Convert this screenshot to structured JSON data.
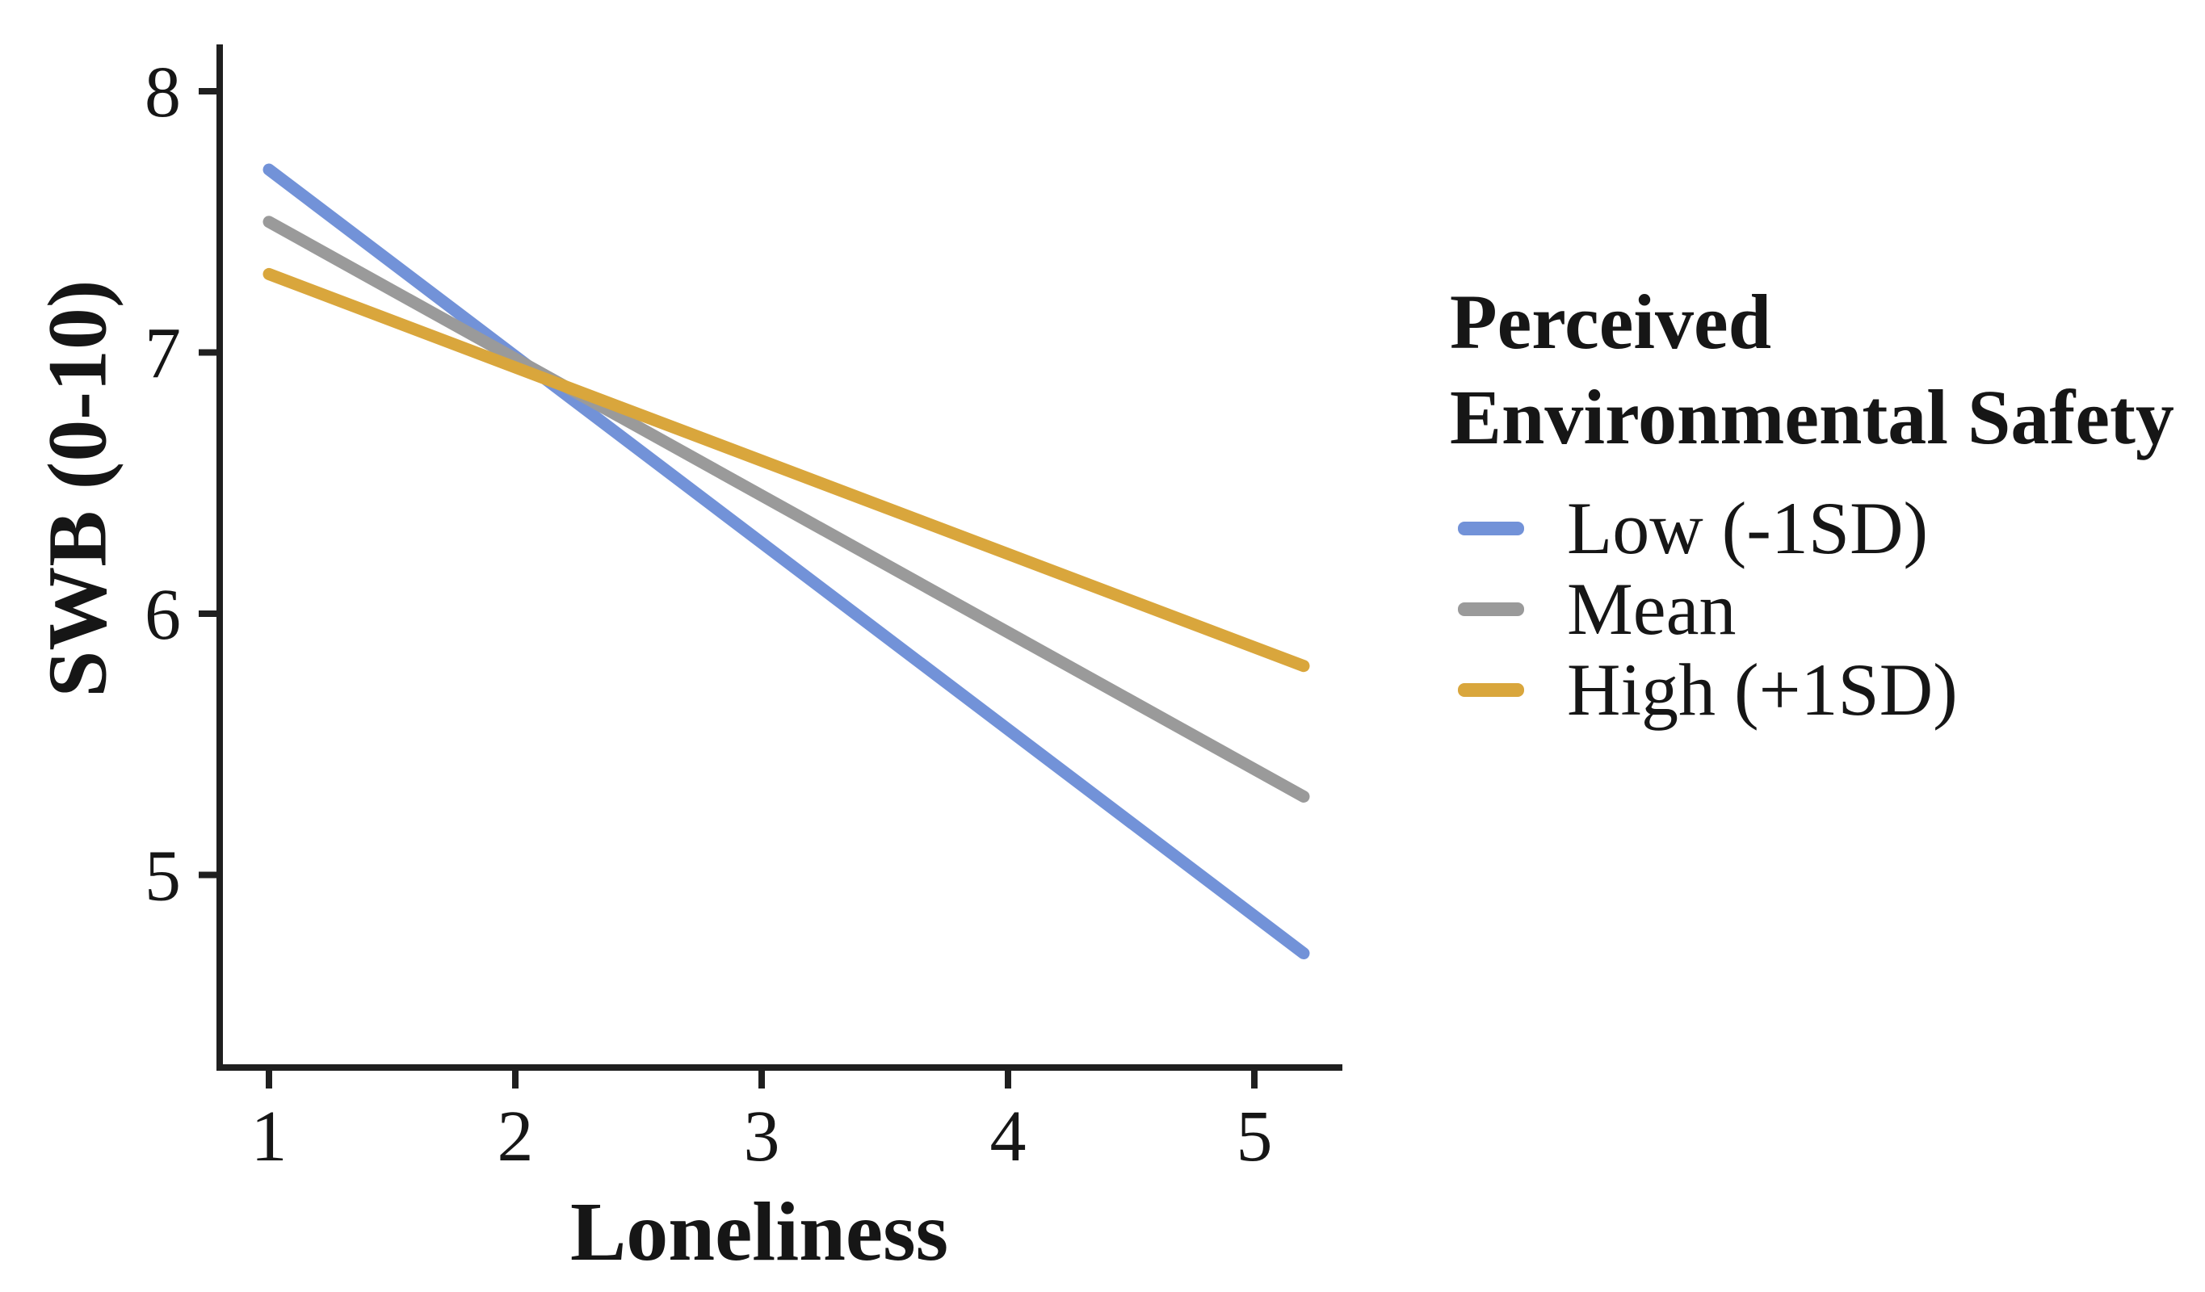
{
  "figure": {
    "background": "#ffffff",
    "text_color": "#161616",
    "axis_color": "#1f1f1f"
  },
  "chart_data": {
    "type": "line",
    "title": "",
    "xlabel": "Loneliness",
    "ylabel": "SWB (0-10)",
    "x_ticks": [
      1,
      2,
      3,
      4,
      5
    ],
    "y_ticks": [
      5,
      6,
      7,
      8
    ],
    "xlim": [
      0.8,
      5.36
    ],
    "ylim": [
      4.27,
      8.18
    ],
    "grid": false,
    "x": [
      1,
      5.2
    ],
    "series": [
      {
        "name": "Low (-1SD)",
        "color": "#7292D8",
        "values": [
          7.7,
          4.7
        ]
      },
      {
        "name": "Mean",
        "color": "#9A9A9A",
        "values": [
          7.5,
          5.3
        ]
      },
      {
        "name": "High (+1SD)",
        "color": "#D9A63C",
        "values": [
          7.3,
          5.8
        ]
      }
    ],
    "legend": {
      "title": "Perceived Environmental Safety",
      "title_lines": [
        "Perceived",
        "Environmental Safety"
      ],
      "position": "right",
      "entries": [
        "Low (-1SD)",
        "Mean",
        "High (+1SD)"
      ]
    }
  }
}
